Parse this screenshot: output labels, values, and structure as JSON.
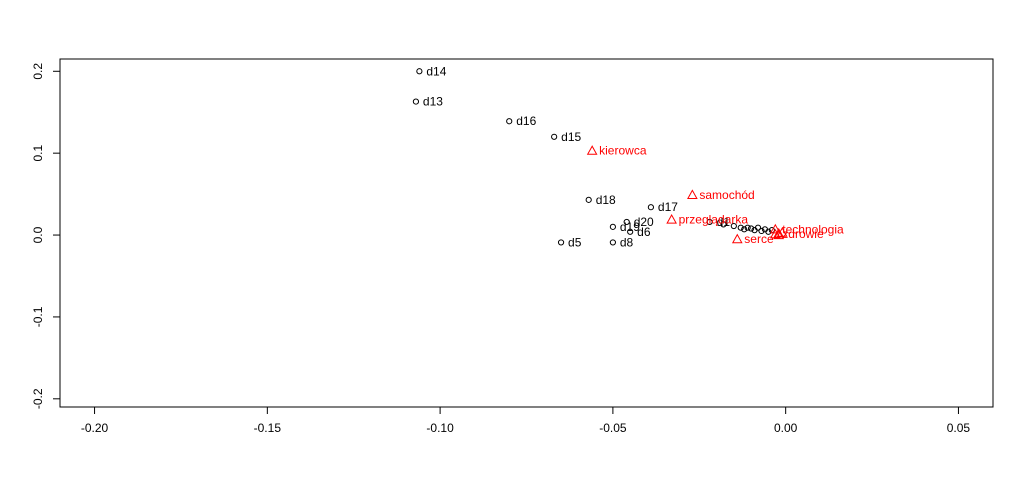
{
  "chart_data": {
    "type": "scatter",
    "title": "",
    "xlabel": "",
    "ylabel": "",
    "xlim": [
      -0.21,
      0.06
    ],
    "ylim": [
      -0.21,
      0.215
    ],
    "xticks": [
      -0.2,
      -0.15,
      -0.1,
      -0.05,
      0.0,
      0.05
    ],
    "xtick_labels": [
      "-0.20",
      "-0.15",
      "-0.10",
      "-0.05",
      "0.00",
      "0.05"
    ],
    "yticks": [
      -0.2,
      -0.1,
      0.0,
      0.1,
      0.2
    ],
    "ytick_labels": [
      "-0.2",
      "-0.1",
      "0.0",
      "0.1",
      "0.2"
    ],
    "grid": false,
    "series": [
      {
        "marker": "circle",
        "color": "#000000",
        "points": [
          {
            "label": "d14",
            "x": -0.106,
            "y": 0.2
          },
          {
            "label": "d13",
            "x": -0.107,
            "y": 0.163
          },
          {
            "label": "d16",
            "x": -0.08,
            "y": 0.139
          },
          {
            "label": "d15",
            "x": -0.067,
            "y": 0.12
          },
          {
            "label": "d18",
            "x": -0.057,
            "y": 0.043
          },
          {
            "label": "d17",
            "x": -0.039,
            "y": 0.034
          },
          {
            "label": "d20",
            "x": -0.046,
            "y": 0.016
          },
          {
            "label": "d19",
            "x": -0.05,
            "y": 0.01
          },
          {
            "label": "d6",
            "x": -0.045,
            "y": 0.004
          },
          {
            "label": "d5",
            "x": -0.065,
            "y": -0.009
          },
          {
            "label": "d8",
            "x": -0.05,
            "y": -0.009
          },
          {
            "label": "d1",
            "x": -0.022,
            "y": 0.016
          },
          {
            "label": "",
            "x": -0.018,
            "y": 0.013
          },
          {
            "label": "",
            "x": -0.015,
            "y": 0.011
          },
          {
            "label": "",
            "x": -0.013,
            "y": 0.009
          },
          {
            "label": "",
            "x": -0.012,
            "y": 0.007
          },
          {
            "label": "",
            "x": -0.011,
            "y": 0.009
          },
          {
            "label": "",
            "x": -0.01,
            "y": 0.008
          },
          {
            "label": "",
            "x": -0.009,
            "y": 0.006
          },
          {
            "label": "",
            "x": -0.008,
            "y": 0.009
          },
          {
            "label": "",
            "x": -0.007,
            "y": 0.005
          },
          {
            "label": "",
            "x": -0.006,
            "y": 0.007
          },
          {
            "label": "",
            "x": -0.005,
            "y": 0.004
          },
          {
            "label": "",
            "x": -0.004,
            "y": 0.006
          }
        ]
      },
      {
        "marker": "triangle",
        "color": "#ff0000",
        "points": [
          {
            "label": "kierowca",
            "x": -0.056,
            "y": 0.103
          },
          {
            "label": "samochód",
            "x": -0.027,
            "y": 0.049
          },
          {
            "label": "przeglądarka",
            "x": -0.033,
            "y": 0.019
          },
          {
            "label": "technologia",
            "x": -0.003,
            "y": 0.007
          },
          {
            "label": "serce",
            "x": -0.014,
            "y": -0.005
          },
          {
            "label": "zdrowie",
            "x": -0.003,
            "y": 0.001
          },
          {
            "label": "",
            "x": -0.002,
            "y": 0.002
          },
          {
            "label": "",
            "x": -0.001,
            "y": 0.003
          },
          {
            "label": "",
            "x": -0.002,
            "y": 0.0
          }
        ]
      }
    ]
  }
}
